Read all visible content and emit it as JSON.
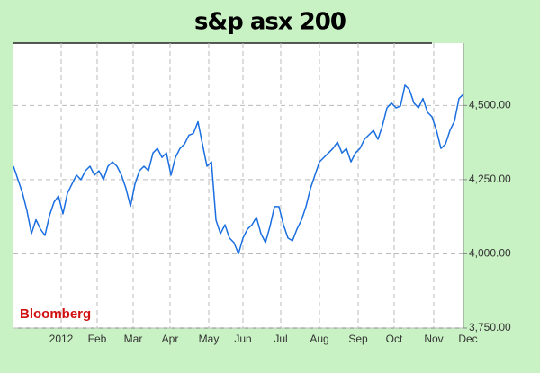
{
  "chart_data": {
    "type": "line",
    "title": "s&p asx 200",
    "annotation": "Bloomberg",
    "x": [
      0,
      1,
      2,
      3,
      4,
      5,
      6,
      7,
      8,
      9,
      10,
      11,
      12,
      13,
      14,
      15,
      16,
      17,
      18,
      19,
      20,
      21,
      22,
      23,
      24,
      25,
      26,
      27,
      28,
      29,
      30,
      31,
      32,
      33,
      34,
      35,
      36,
      37,
      38,
      39,
      40,
      41,
      42,
      43,
      44,
      45,
      46,
      47,
      48,
      49,
      50,
      51,
      52,
      53,
      54,
      55,
      56,
      57,
      58,
      59,
      60,
      61,
      62,
      63,
      64,
      65,
      66,
      67,
      68,
      69,
      70,
      71,
      72,
      73,
      74,
      75,
      76,
      77,
      78,
      79,
      80,
      81,
      82,
      83,
      84,
      85,
      86,
      87,
      88,
      89,
      90,
      91,
      92,
      93,
      94,
      95,
      96,
      97,
      98,
      99,
      100
    ],
    "series": [
      {
        "name": "S&P/ASX 200",
        "color": "#1a6fe0",
        "values": [
          4295,
          4250,
          4205,
          4145,
          4068,
          4115,
          4083,
          4062,
          4129,
          4174,
          4195,
          4135,
          4205,
          4235,
          4265,
          4250,
          4280,
          4295,
          4265,
          4280,
          4250,
          4295,
          4310,
          4295,
          4265,
          4220,
          4160,
          4235,
          4280,
          4295,
          4280,
          4340,
          4355,
          4325,
          4340,
          4265,
          4325,
          4355,
          4370,
          4400,
          4406,
          4445,
          4370,
          4295,
          4310,
          4114,
          4068,
          4098,
          4053,
          4038,
          4000,
          4053,
          4083,
          4098,
          4123,
          4068,
          4038,
          4092,
          4159,
          4159,
          4098,
          4053,
          4044,
          4083,
          4114,
          4159,
          4220,
          4265,
          4310,
          4325,
          4340,
          4355,
          4377,
          4340,
          4355,
          4310,
          4340,
          4355,
          4386,
          4401,
          4416,
          4386,
          4432,
          4492,
          4508,
          4492,
          4498,
          4568,
          4553,
          4508,
          4492,
          4523,
          4477,
          4462,
          4416,
          4355,
          4370,
          4416,
          4447,
          4523,
          4538
        ]
      }
    ],
    "xlim": [
      0,
      100
    ],
    "xticks": [
      {
        "value": 10.6,
        "label": "2012"
      },
      {
        "value": 18.6,
        "label": "Feb"
      },
      {
        "value": 26.6,
        "label": "Mar"
      },
      {
        "value": 34.8,
        "label": "Apr"
      },
      {
        "value": 43.4,
        "label": "May"
      },
      {
        "value": 51,
        "label": "Jun"
      },
      {
        "value": 59.4,
        "label": "Jul"
      },
      {
        "value": 68,
        "label": "Aug"
      },
      {
        "value": 76.6,
        "label": "Sep"
      },
      {
        "value": 84.6,
        "label": "Oct"
      },
      {
        "value": 93.4,
        "label": "Nov"
      },
      {
        "value": 101,
        "label": "Dec"
      }
    ],
    "ylim": [
      3750,
      4710
    ],
    "yticks": [
      {
        "value": 3750,
        "label": "3,750.00"
      },
      {
        "value": 4000,
        "label": "4,000.00"
      },
      {
        "value": 4250,
        "label": "4,250.00"
      },
      {
        "value": 4500,
        "label": "4,500.00"
      }
    ],
    "grid": true
  }
}
